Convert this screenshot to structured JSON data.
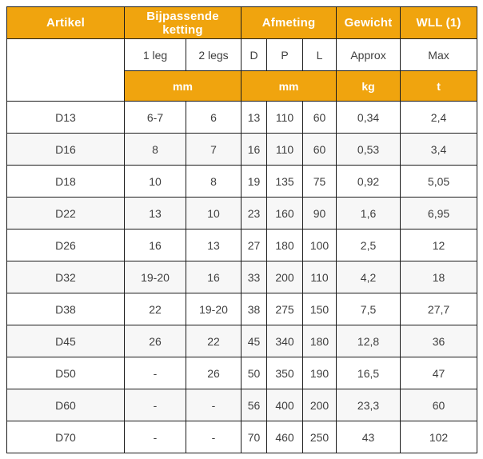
{
  "colors": {
    "header_bg": "#F0A40E",
    "header_text": "#FFFFFF",
    "border": "#1C1C1C",
    "cell_text": "#3F3F3F",
    "stripe_bg": "#F7F7F7",
    "row_bg": "#FFFFFF"
  },
  "table": {
    "groups": [
      {
        "label": "Artikel",
        "colspan": 1
      },
      {
        "label": "Bijpassende ketting",
        "colspan": 2
      },
      {
        "label": "Afmeting",
        "colspan": 3
      },
      {
        "label": "Gewicht",
        "colspan": 1
      },
      {
        "label": "WLL (1)",
        "colspan": 1
      }
    ],
    "subheaders": [
      "1 leg",
      "2 legs",
      "D",
      "P",
      "L",
      "Approx",
      "Max"
    ],
    "units": [
      {
        "label": "mm",
        "colspan": 2
      },
      {
        "label": "mm",
        "colspan": 3
      },
      {
        "label": "kg",
        "colspan": 1
      },
      {
        "label": "t",
        "colspan": 1
      }
    ],
    "column_keys": [
      "artikel",
      "chain-1leg",
      "chain-2legs",
      "dim-d",
      "dim-p",
      "dim-l",
      "weight-approx",
      "wll-max"
    ],
    "rows": [
      [
        "D13",
        "6-7",
        "6",
        "13",
        "110",
        "60",
        "0,34",
        "2,4"
      ],
      [
        "D16",
        "8",
        "7",
        "16",
        "110",
        "60",
        "0,53",
        "3,4"
      ],
      [
        "D18",
        "10",
        "8",
        "19",
        "135",
        "75",
        "0,92",
        "5,05"
      ],
      [
        "D22",
        "13",
        "10",
        "23",
        "160",
        "90",
        "1,6",
        "6,95"
      ],
      [
        "D26",
        "16",
        "13",
        "27",
        "180",
        "100",
        "2,5",
        "12"
      ],
      [
        "D32",
        "19-20",
        "16",
        "33",
        "200",
        "110",
        "4,2",
        "18"
      ],
      [
        "D38",
        "22",
        "19-20",
        "38",
        "275",
        "150",
        "7,5",
        "27,7"
      ],
      [
        "D45",
        "26",
        "22",
        "45",
        "340",
        "180",
        "12,8",
        "36"
      ],
      [
        "D50",
        "-",
        "26",
        "50",
        "350",
        "190",
        "16,5",
        "47"
      ],
      [
        "D60",
        "-",
        "-",
        "56",
        "400",
        "200",
        "23,3",
        "60"
      ],
      [
        "D70",
        "-",
        "-",
        "70",
        "460",
        "250",
        "43",
        "102"
      ]
    ]
  }
}
